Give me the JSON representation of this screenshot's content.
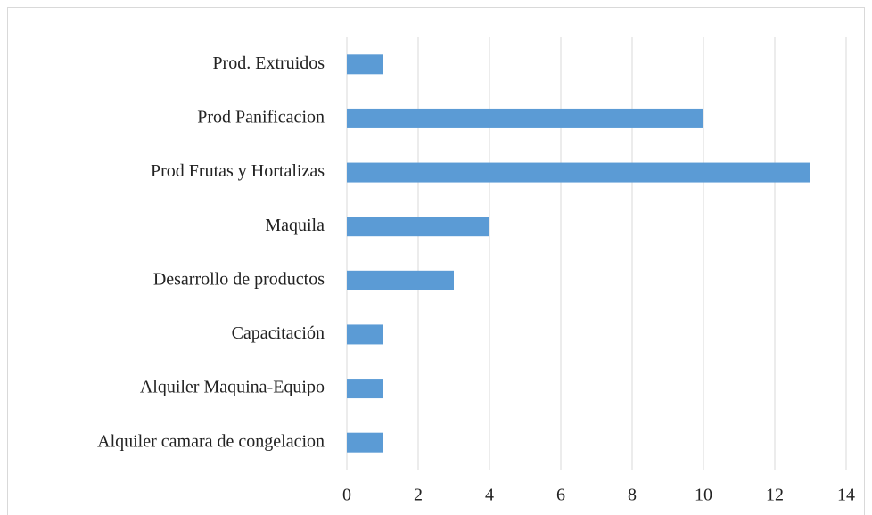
{
  "chart_data": {
    "type": "bar",
    "orientation": "horizontal",
    "categories": [
      "Prod. Extruidos",
      "Prod Panificacion",
      "Prod Frutas y Hortalizas",
      "Maquila",
      "Desarrollo de productos",
      "Capacitación",
      "Alquiler Maquina-Equipo",
      "Alquiler camara de congelacion"
    ],
    "values": [
      1,
      10,
      13,
      4,
      3,
      1,
      1,
      1
    ],
    "color": "#5b9bd5",
    "xlim": [
      0,
      14
    ],
    "xticks": [
      0,
      2,
      4,
      6,
      8,
      10,
      12,
      14
    ],
    "grid": true
  }
}
